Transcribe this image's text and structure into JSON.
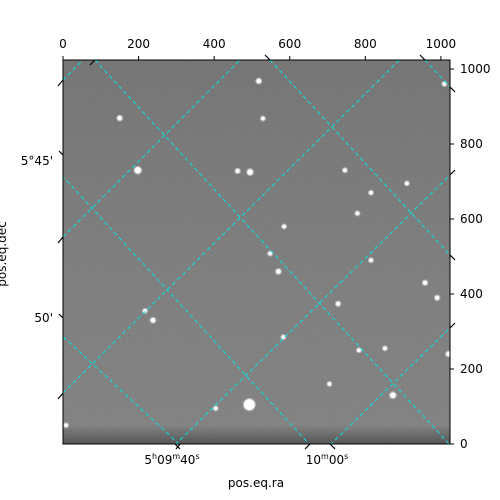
{
  "chart_data": {
    "type": "image",
    "title": "",
    "xlabel": "pos.eq.ra",
    "ylabel": "pos.eq.dec",
    "pixel_xlim": [
      0,
      1024
    ],
    "pixel_ylim": [
      0,
      1024
    ],
    "pixel_xticks": [
      0,
      200,
      400,
      600,
      800,
      1000
    ],
    "pixel_yticks": [
      0,
      200,
      400,
      600,
      800,
      1000
    ],
    "pixel_xtick_labels": [
      "0",
      "200",
      "400",
      "600",
      "800",
      "1000"
    ],
    "pixel_ytick_labels": [
      "0",
      "200",
      "400",
      "600",
      "800",
      "1000"
    ],
    "ra_tick_labels": [
      {
        "h": "5",
        "m": "09",
        "s": "40"
      },
      {
        "h": "",
        "m": "10",
        "s": "00"
      }
    ],
    "dec_tick_labels": [
      "5°45'",
      "50'"
    ],
    "grid": true,
    "grid_color": "#00e5e5",
    "image_colormap": "gray",
    "stars": [
      {
        "x": 198,
        "y": 730,
        "mag": 1.0
      },
      {
        "x": 493,
        "y": 105,
        "mag": 2.0
      },
      {
        "x": 495,
        "y": 725,
        "mag": 0.8
      },
      {
        "x": 462,
        "y": 728,
        "mag": 0.5
      },
      {
        "x": 518,
        "y": 968,
        "mag": 0.6
      },
      {
        "x": 150,
        "y": 869,
        "mag": 0.6
      },
      {
        "x": 570,
        "y": 460,
        "mag": 0.6
      },
      {
        "x": 238,
        "y": 330,
        "mag": 0.6
      },
      {
        "x": 728,
        "y": 374,
        "mag": 0.5
      },
      {
        "x": 873,
        "y": 130,
        "mag": 0.8
      },
      {
        "x": 1020,
        "y": 240,
        "mag": 0.6
      },
      {
        "x": 990,
        "y": 390,
        "mag": 0.5
      },
      {
        "x": 958,
        "y": 430,
        "mag": 0.5
      },
      {
        "x": 779,
        "y": 615,
        "mag": 0.4
      },
      {
        "x": 815,
        "y": 670,
        "mag": 0.4
      },
      {
        "x": 910,
        "y": 695,
        "mag": 0.4
      },
      {
        "x": 815,
        "y": 490,
        "mag": 0.4
      },
      {
        "x": 746,
        "y": 730,
        "mag": 0.4
      },
      {
        "x": 585,
        "y": 580,
        "mag": 0.4
      },
      {
        "x": 548,
        "y": 508,
        "mag": 0.4
      },
      {
        "x": 529,
        "y": 868,
        "mag": 0.4
      },
      {
        "x": 705,
        "y": 160,
        "mag": 0.4
      },
      {
        "x": 1009,
        "y": 960,
        "mag": 0.4
      },
      {
        "x": 583,
        "y": 285,
        "mag": 0.4
      },
      {
        "x": 217,
        "y": 355,
        "mag": 0.4
      },
      {
        "x": 783,
        "y": 250,
        "mag": 0.4
      },
      {
        "x": 852,
        "y": 255,
        "mag": 0.4
      },
      {
        "x": 8,
        "y": 50,
        "mag": 0.4
      },
      {
        "x": 404,
        "y": 95,
        "mag": 0.4
      }
    ]
  }
}
